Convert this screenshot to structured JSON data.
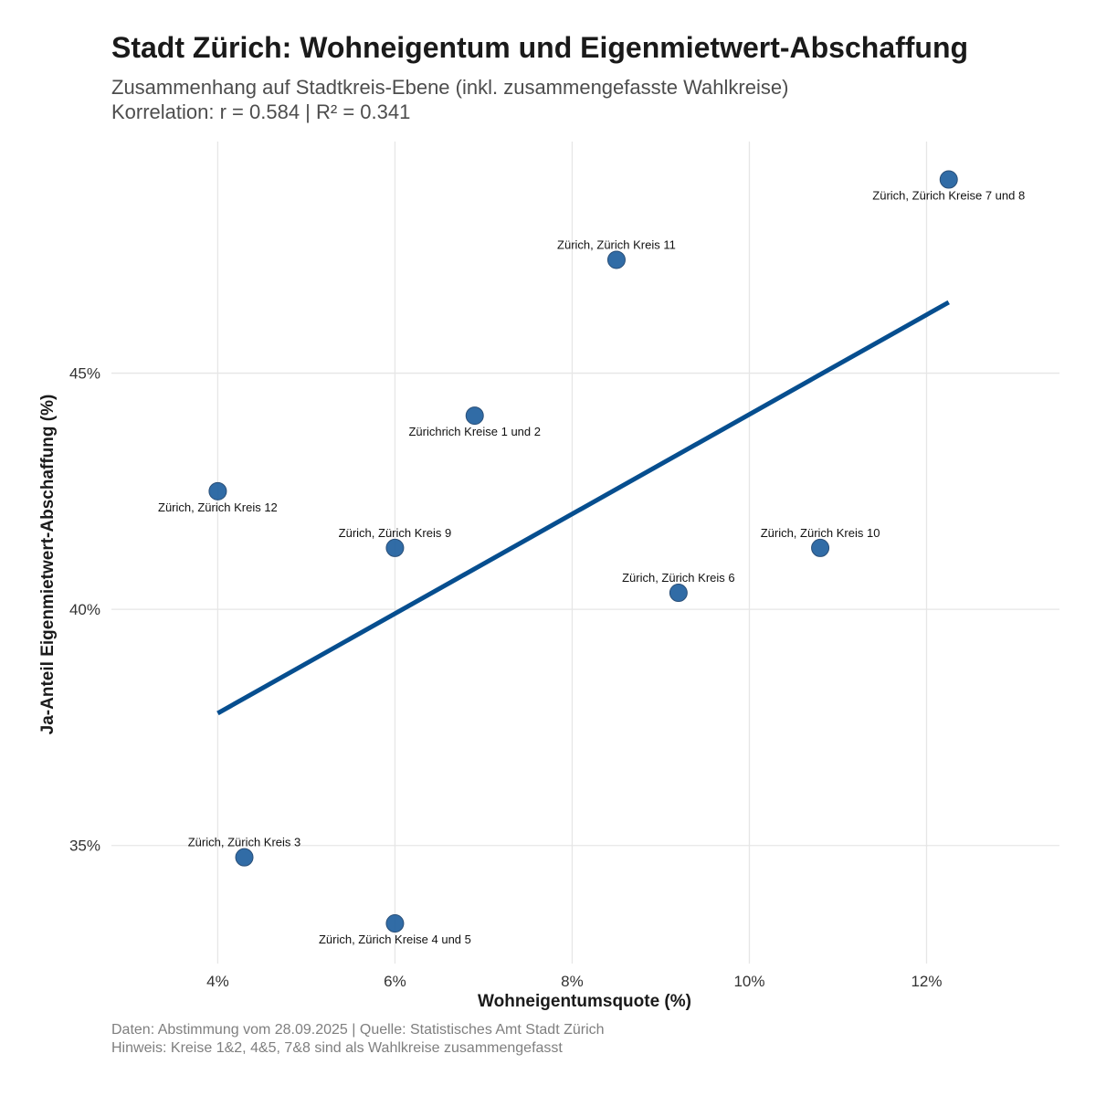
{
  "chart_data": {
    "type": "scatter",
    "title": "Stadt Zürich: Wohneigentum und Eigenmietwert-Abschaffung",
    "subtitle_lines": [
      "Zusammenhang auf Stadtkreis-Ebene (inkl. zusammengefasste Wahlkreise)",
      "Korrelation: r = 0.584 | R² = 0.341"
    ],
    "xlabel": "Wohneigentumsquote (%)",
    "ylabel": "Ja-Anteil Eigenmietwert-Abschaffung (%)",
    "xlim": [
      2.8,
      13.5
    ],
    "ylim": [
      32.5,
      50.0
    ],
    "x_ticks": [
      4,
      6,
      8,
      10,
      12
    ],
    "x_tick_labels": [
      "4%",
      "6%",
      "8%",
      "10%",
      "12%"
    ],
    "y_ticks": [
      35,
      40,
      45
    ],
    "y_tick_labels": [
      "35%",
      "40%",
      "45%"
    ],
    "grid": true,
    "point_color": "#1f5f9e",
    "line_color": "#064e8f",
    "points": [
      {
        "label": "Zürich, Zürich Kreise 7 und 8",
        "x": 12.25,
        "y": 49.1,
        "label_pos": "below"
      },
      {
        "label": "Zürich, Zürich Kreis 11",
        "x": 8.5,
        "y": 47.4,
        "label_pos": "above"
      },
      {
        "label": "Zürichrich Kreise 1 und 2",
        "x": 6.9,
        "y": 44.1,
        "label_pos": "below"
      },
      {
        "label": "Zürich, Zürich Kreis 12",
        "x": 4.0,
        "y": 42.5,
        "label_pos": "below"
      },
      {
        "label": "Zürich, Zürich Kreis 9",
        "x": 6.0,
        "y": 41.3,
        "label_pos": "above"
      },
      {
        "label": "Zürich, Zürich Kreis 10",
        "x": 10.8,
        "y": 41.3,
        "label_pos": "above"
      },
      {
        "label": "Zürich, Zürich Kreis 6",
        "x": 9.2,
        "y": 40.35,
        "label_pos": "above"
      },
      {
        "label": "Zürich, Zürich Kreis 3",
        "x": 4.3,
        "y": 34.75,
        "label_pos": "above"
      },
      {
        "label": "Zürich, Zürich Kreise 4 und 5",
        "x": 6.0,
        "y": 33.35,
        "label_pos": "below"
      }
    ],
    "trend_line": {
      "x": [
        4.0,
        12.25
      ],
      "y": [
        37.8,
        46.5
      ]
    }
  },
  "caption_lines": [
    "Daten: Abstimmung vom 28.09.2025 | Quelle: Statistisches Amt Stadt Zürich",
    "Hinweis: Kreise 1&2, 4&5, 7&8 sind als Wahlkreise zusammengefasst"
  ]
}
